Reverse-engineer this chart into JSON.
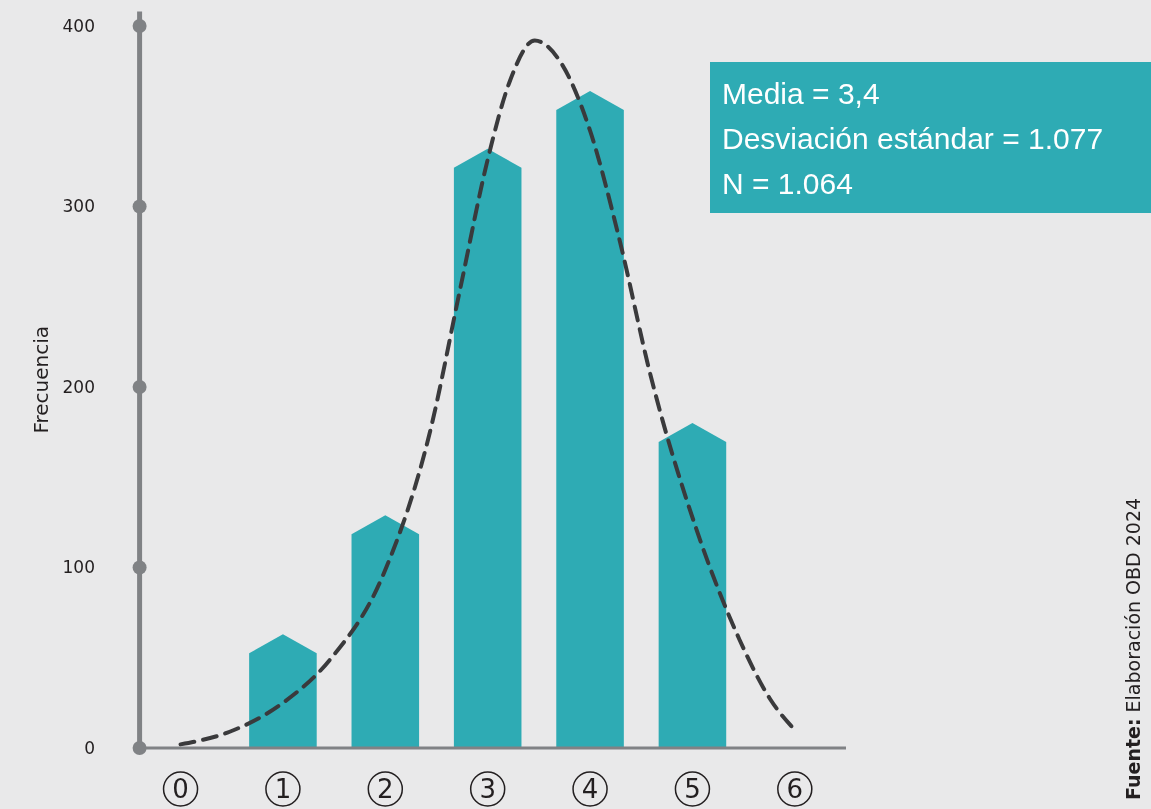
{
  "chart_data": {
    "type": "bar",
    "ylabel": "Frecuencia",
    "xlim": [
      -0.4,
      6.5
    ],
    "xticks": [
      0,
      1,
      2,
      3,
      4,
      5,
      6
    ],
    "ylim": [
      0,
      408
    ],
    "yticks": [
      0,
      100,
      200,
      300,
      400
    ],
    "grid": false,
    "series": [
      {
        "color": "#2eabb4",
        "x": [
          1,
          2,
          3,
          4,
          5
        ],
        "values": [
          63,
          129,
          332,
          364,
          180
        ]
      },
      {
        "type": "line",
        "color": "#3a3a3c",
        "line_style": "dashed",
        "marker": "none",
        "x": [
          0,
          0.48,
          1,
          1.46,
          1.98,
          2.44,
          2.73,
          3,
          3.22,
          3.46,
          3.7,
          4,
          4.29,
          4.58,
          5.04,
          5.46,
          5.76,
          6
        ],
        "values": [
          2,
          9,
          25,
          49,
          96,
          176,
          254,
          326,
          370,
          392,
          381,
          342,
          281,
          209,
          121,
          60,
          27,
          10
        ]
      }
    ],
    "annotations": [
      "Media = 3,4",
      "Desviación estándar = 1.077",
      "N = 1.064",
      "Fuente: Elaboración OBD 2024"
    ]
  }
}
